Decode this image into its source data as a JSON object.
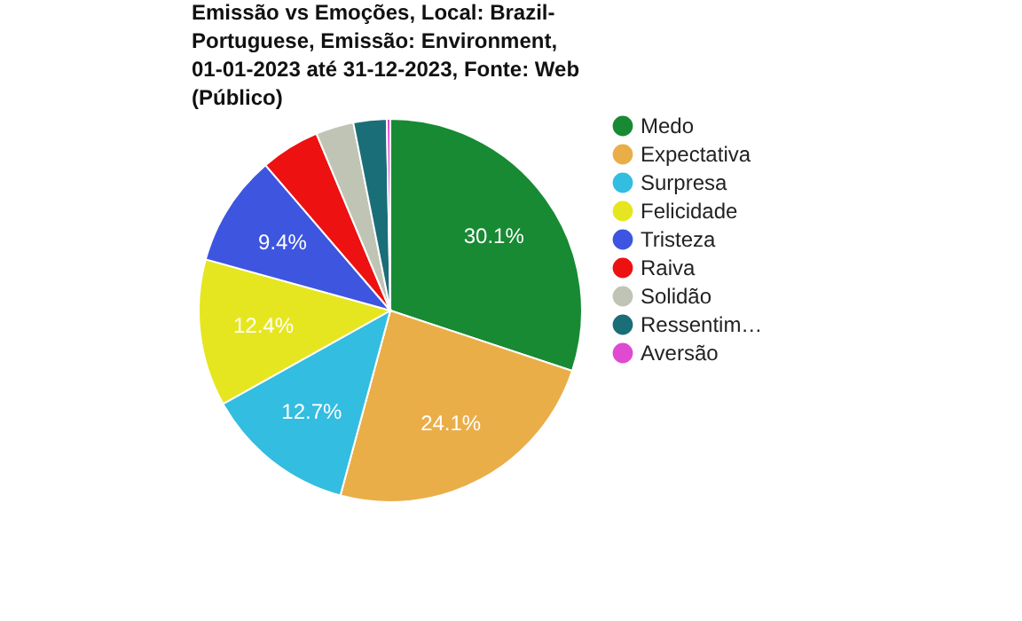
{
  "chart_data": {
    "type": "pie",
    "title": "Emissão vs Emoções, Local: Brazil-Portuguese, Emissão: Environment, 01-01-2023 até 31-12-2023, Fonte: Web (Público)",
    "categories": [
      "Medo",
      "Expectativa",
      "Surpresa",
      "Felicidade",
      "Tristeza",
      "Raiva",
      "Solidão",
      "Ressentim…",
      "Aversão"
    ],
    "values": [
      30.1,
      24.1,
      12.7,
      12.4,
      9.4,
      5.0,
      3.2,
      2.8,
      0.3
    ],
    "value_labels": [
      "30.1%",
      "24.1%",
      "12.7%",
      "12.4%",
      "9.4%",
      null,
      null,
      null,
      null
    ],
    "colors": [
      "#178a33",
      "#eaae48",
      "#33bde0",
      "#e6e620",
      "#3e55e0",
      "#ee1111",
      "#c0c4b5",
      "#1a6e78",
      "#e04ad0"
    ],
    "legend": "right"
  }
}
